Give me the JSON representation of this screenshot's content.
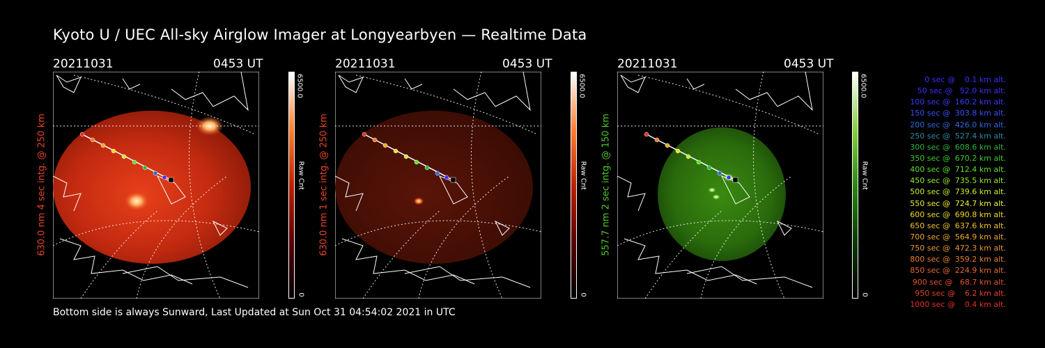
{
  "title": "Kyoto U / UEC All-sky Airglow Imager at Longyearbyen — Realtime Data",
  "footer": "Bottom side is always Sunward, Last Updated at Sun Oct 31 04:54:02 2021 in UTC",
  "panels": [
    {
      "date": "20211031",
      "time": "0453 UT",
      "side_label": "630.0 nm  4 sec intg. @ 250 km",
      "label_color": "#e8452a",
      "cb_max": "6500.0",
      "cb_min": "0",
      "cb_unit": "Raw Cnt",
      "tint": "red"
    },
    {
      "date": "20211031",
      "time": "0453 UT",
      "side_label": "630.0 nm  1 sec intg. @ 250 km",
      "label_color": "#e8452a",
      "cb_max": "6500.0",
      "cb_min": "0",
      "cb_unit": "Raw Cnt",
      "tint": "darkred"
    },
    {
      "date": "20211031",
      "time": "0453 UT",
      "side_label": "557.7 nm  2 sec intg. @ 150 km",
      "label_color": "#4ecb2a",
      "cb_max": "6500.0",
      "cb_min": "0",
      "cb_unit": "Raw Cnt",
      "tint": "green"
    }
  ],
  "legend": [
    {
      "text": "0 sec @    0.1 km alt.",
      "color": "#3a30ff"
    },
    {
      "text": "50 sec @   52.0 km alt.",
      "color": "#3a30ff"
    },
    {
      "text": "100 sec @  160.2 km alt.",
      "color": "#3a3aff"
    },
    {
      "text": "150 sec @  303.8 km alt.",
      "color": "#3a50ff"
    },
    {
      "text": "200 sec @  426.0 km alt.",
      "color": "#2e6ae0"
    },
    {
      "text": "250 sec @  527.4 km alt.",
      "color": "#2a8aa8"
    },
    {
      "text": "300 sec @  608.6 km alt.",
      "color": "#2ab840"
    },
    {
      "text": "350 sec @  670.2 km alt.",
      "color": "#3ad02a"
    },
    {
      "text": "400 sec @  712.4 km alt.",
      "color": "#5ee02a"
    },
    {
      "text": "450 sec @  735.5 km alt.",
      "color": "#96e82a"
    },
    {
      "text": "500 sec @  739.6 km alt.",
      "color": "#c8ee2a"
    },
    {
      "text": "550 sec @  724.7 km alt.",
      "color": "#eef02a"
    },
    {
      "text": "600 sec @  690.8 km alt.",
      "color": "#f4dc2a"
    },
    {
      "text": "650 sec @  637.6 km alt.",
      "color": "#f2c22a"
    },
    {
      "text": "700 sec @  564.9 km alt.",
      "color": "#f0a82a"
    },
    {
      "text": "750 sec @  472.3 km alt.",
      "color": "#ee942a"
    },
    {
      "text": "800 sec @  359.2 km alt.",
      "color": "#ec802a"
    },
    {
      "text": "850 sec @  224.9 km alt.",
      "color": "#ea6a2a"
    },
    {
      "text": "900 sec @   68.7 km alt.",
      "color": "#e8522a"
    },
    {
      "text": "950 sec @    6.2 km alt.",
      "color": "#e6402a"
    },
    {
      "text": "1000 sec @    0.4 km alt.",
      "color": "#e4302a"
    }
  ]
}
